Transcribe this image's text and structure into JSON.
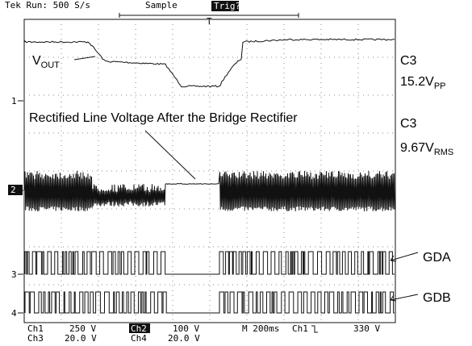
{
  "header": {
    "status": "Tek Run: 500 S/s",
    "mode": "Sample",
    "trigger": "Trig?",
    "trigger_marker": "T"
  },
  "annotations": {
    "vout": {
      "main": "V",
      "sub": "OUT"
    },
    "rectified": "Rectified Line Voltage After the Bridge Rectifier"
  },
  "measurements": [
    {
      "channel": "C3",
      "value": "15.2V",
      "unit": "PP"
    },
    {
      "channel": "C3",
      "value": "9.67V",
      "unit": "RMS"
    }
  ],
  "signals": [
    "GDA",
    "GDB"
  ],
  "channel_markers": [
    "1",
    "2",
    "3",
    "4"
  ],
  "footer": {
    "row1": [
      "Ch1",
      "250 V",
      "Ch2",
      "100 V",
      "M 200ms",
      "Ch1",
      "330 V"
    ],
    "row2": [
      "Ch3",
      "20.0 V",
      "Ch4",
      "20.0 V"
    ]
  }
}
